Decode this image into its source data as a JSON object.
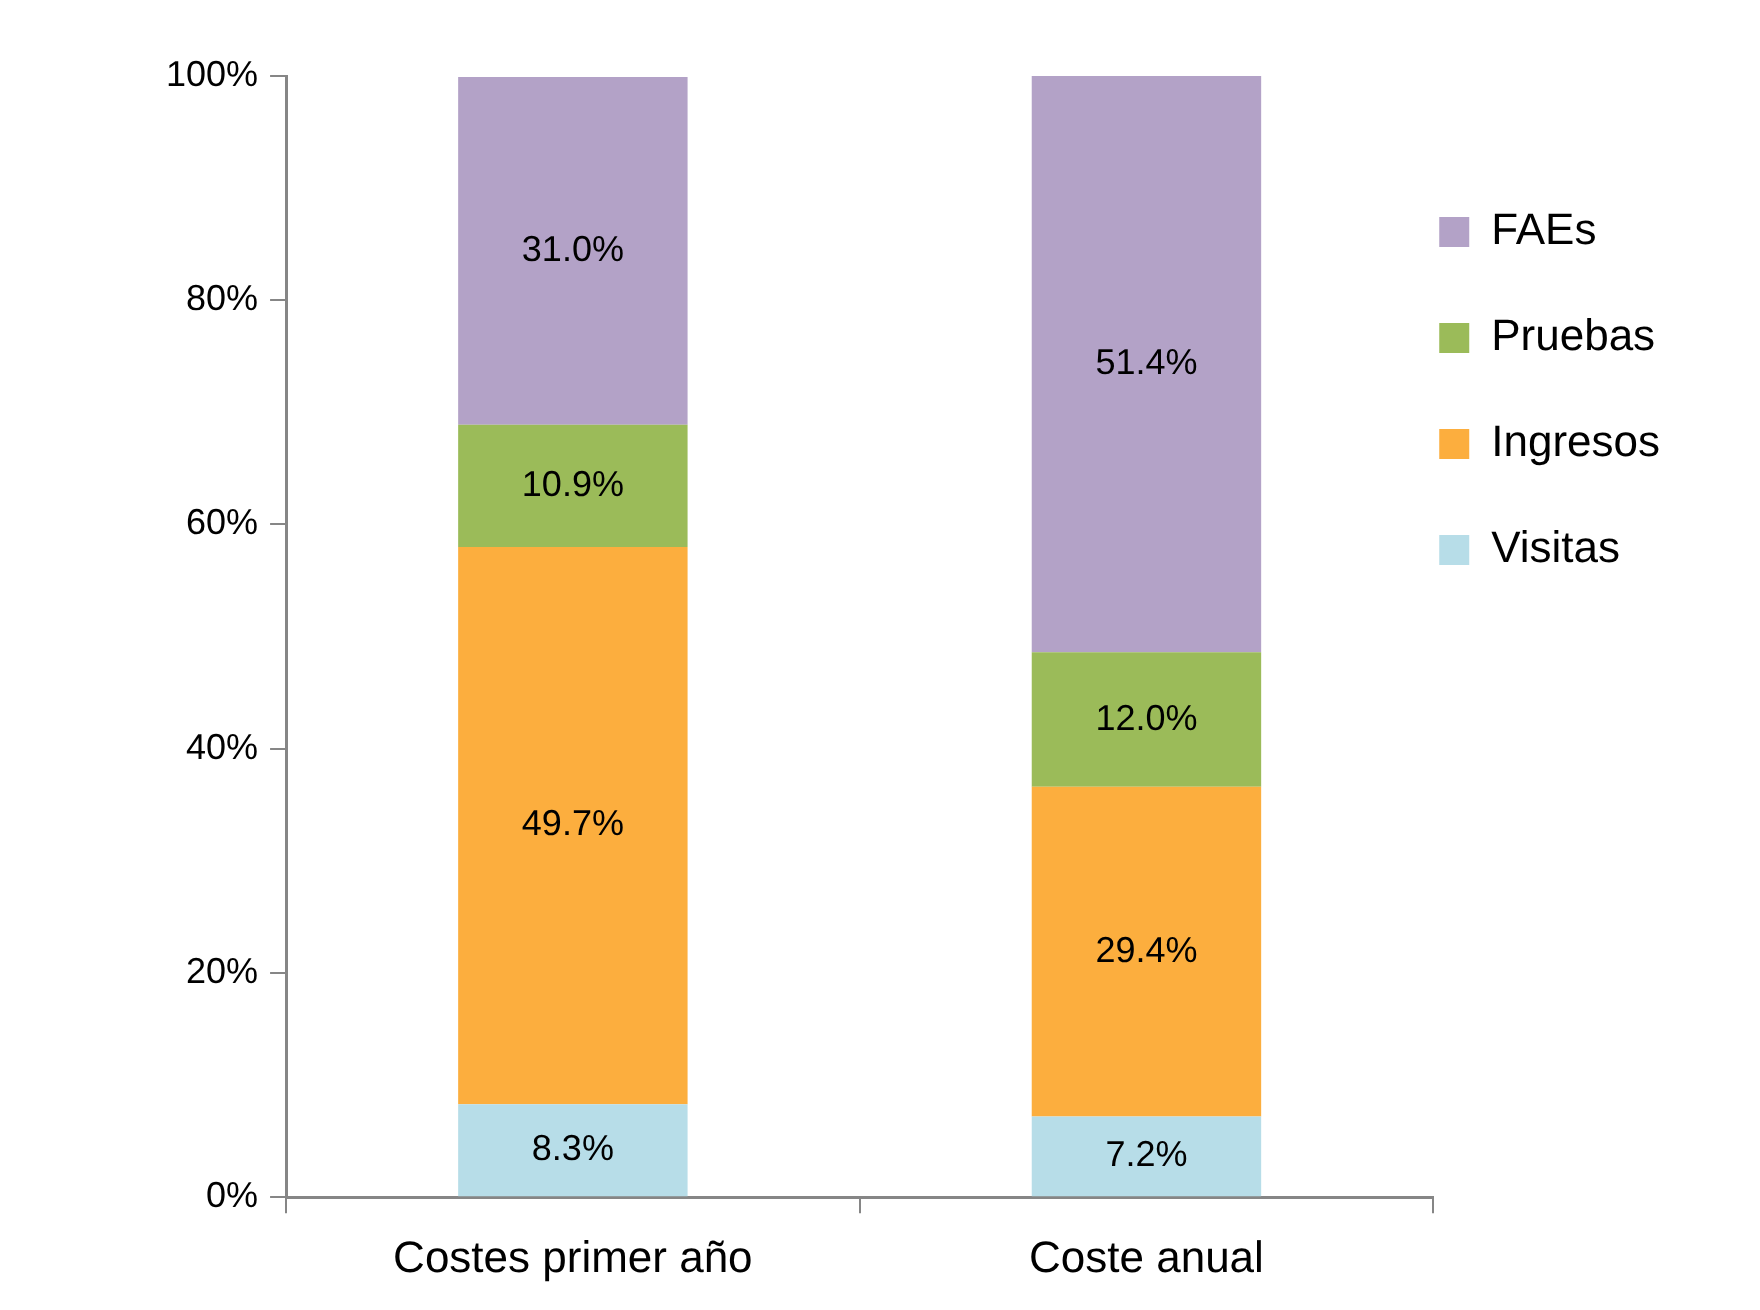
{
  "chart_data": {
    "type": "bar",
    "stacked": true,
    "categories": [
      "Costes primer año",
      "Coste anual"
    ],
    "series": [
      {
        "name": "Visitas",
        "color": "#b7dde8",
        "values": [
          8.3,
          7.2
        ],
        "value_labels": [
          "8.3%",
          "7.2%"
        ]
      },
      {
        "name": "Ingresos",
        "color": "#fcae3e",
        "values": [
          49.7,
          29.4
        ],
        "value_labels": [
          "49.7%",
          "29.4%"
        ]
      },
      {
        "name": "Pruebas",
        "color": "#9bbb59",
        "values": [
          10.9,
          12.0
        ],
        "value_labels": [
          "10.9%",
          "12.0%"
        ]
      },
      {
        "name": "FAEs",
        "color": "#b3a2c7",
        "values": [
          31.0,
          51.4
        ],
        "value_labels": [
          "31.0%",
          "51.4%"
        ]
      }
    ],
    "ylim": [
      0,
      100
    ],
    "yticks": [
      {
        "value": 0,
        "label": "0%"
      },
      {
        "value": 20,
        "label": "20%"
      },
      {
        "value": 40,
        "label": "40%"
      },
      {
        "value": 60,
        "label": "60%"
      },
      {
        "value": 80,
        "label": "80%"
      },
      {
        "value": 100,
        "label": "100%"
      }
    ],
    "legend": "right"
  }
}
